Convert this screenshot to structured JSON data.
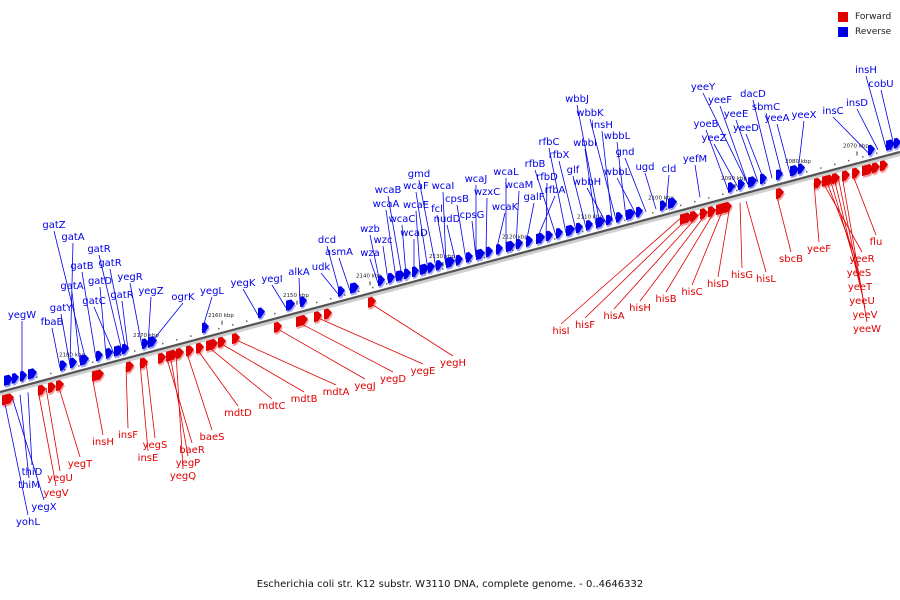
{
  "legend": [
    {
      "label": "Forward",
      "color": "#e00000"
    },
    {
      "label": "Reverse",
      "color": "#0000e8"
    }
  ],
  "caption": "Escherichia coli str. K12 substr. W3110 DNA, complete genome. - 0..4646332",
  "colors": {
    "forward": "#e00000",
    "reverse": "#0000e8",
    "backbone": "#555555"
  },
  "ruler_ticks": [
    "2070 kbp",
    "2080 kbp",
    "2090 kbp",
    "2100 kbp",
    "2110 kbp",
    "2120 kbp",
    "2130 kbp",
    "2140 kbp",
    "2150 kbp",
    "2160 kbp",
    "2170 kbp",
    "2180 kbp"
  ],
  "genes": {
    "reverse_labels": [
      "yohL",
      "yegX",
      "thiM",
      "thiD",
      "yegW",
      "fbaB",
      "gatY",
      "gatA",
      "gatZ",
      "gatB",
      "gatA",
      "gatD",
      "gatC",
      "gatR",
      "gatR",
      "gatR",
      "yegR",
      "yegZ",
      "ogrK",
      "yegL",
      "yegK",
      "yegI",
      "alkA",
      "udk",
      "dcd",
      "asmA",
      "wza",
      "wzb",
      "wzc",
      "wcaA",
      "wcaB",
      "wcaC",
      "wcaD",
      "wcaE",
      "wcaF",
      "gmd",
      "wcaI",
      "fcl",
      "nudD",
      "cpsB",
      "wcaJ",
      "cpsG",
      "wzxC",
      "wcaK",
      "wcaL",
      "wcaM",
      "galF",
      "rfbA",
      "rfbD",
      "rfbB",
      "rfbC",
      "rfbX",
      "glf",
      "wbbI",
      "wbbJ",
      "wbbH",
      "insH",
      "wbbK",
      "wbbL",
      "wbbL",
      "gnd",
      "ugd",
      "cld",
      "yefM",
      "yoeB",
      "yeeZ",
      "yeeY",
      "yeeF",
      "yeeE",
      "yeeD",
      "dacD",
      "sbmC",
      "yeeA",
      "yeeX",
      "insC",
      "insD",
      "insH",
      "cobU"
    ],
    "forward_labels": [
      "yegT",
      "yegU",
      "yegV",
      "insH",
      "insF",
      "insE",
      "yegS",
      "baeR",
      "yegP",
      "yegQ",
      "baeS",
      "mdtD",
      "mdtC",
      "mdtB",
      "mdtA",
      "yegJ",
      "yegD",
      "yegE",
      "yegH",
      "hisI",
      "hisF",
      "hisA",
      "hisH",
      "hisB",
      "hisC",
      "hisD",
      "hisG",
      "hisL",
      "sbcB",
      "yeeF",
      "flu",
      "yeeR",
      "yeeS",
      "yeeT",
      "yeeU",
      "yeeV",
      "yeeW"
    ]
  }
}
